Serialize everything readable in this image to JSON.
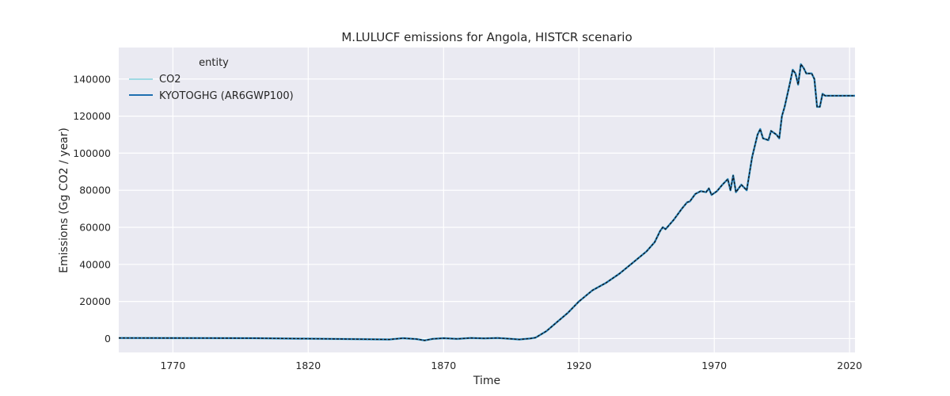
{
  "chart_data": {
    "type": "line",
    "title": "M.LULUCF emissions for Angola, HISTCR scenario",
    "xlabel": "Time",
    "ylabel": "Emissions (Gg CO2 / year)",
    "xlim": [
      1750,
      2022
    ],
    "ylim": [
      -7500,
      157000
    ],
    "xticks": [
      1770,
      1820,
      1870,
      1920,
      1970,
      2020
    ],
    "yticks": [
      0,
      20000,
      40000,
      60000,
      80000,
      100000,
      120000,
      140000
    ],
    "grid": true,
    "legend": {
      "title": "entity",
      "placement": "top-left"
    },
    "colors": {
      "background": "#eaeaf2",
      "co2": "#9fd9e3",
      "kyotoghg": "#1f6fb0",
      "overlay": "#111111"
    },
    "series": [
      {
        "name": "CO2",
        "points": [
          [
            1750,
            300
          ],
          [
            1800,
            200
          ],
          [
            1850,
            -500
          ],
          [
            1855,
            200
          ],
          [
            1860,
            -300
          ],
          [
            1863,
            -1000
          ],
          [
            1866,
            -200
          ],
          [
            1870,
            200
          ],
          [
            1875,
            -200
          ],
          [
            1880,
            300
          ],
          [
            1885,
            100
          ],
          [
            1890,
            300
          ],
          [
            1895,
            -200
          ],
          [
            1898,
            -500
          ],
          [
            1902,
            0
          ],
          [
            1904,
            500
          ],
          [
            1908,
            4000
          ],
          [
            1912,
            9000
          ],
          [
            1916,
            14000
          ],
          [
            1920,
            20000
          ],
          [
            1925,
            26000
          ],
          [
            1930,
            30000
          ],
          [
            1935,
            35000
          ],
          [
            1940,
            41000
          ],
          [
            1945,
            47000
          ],
          [
            1948,
            52000
          ],
          [
            1950,
            58000
          ],
          [
            1951,
            60000
          ],
          [
            1952,
            59000
          ],
          [
            1955,
            64000
          ],
          [
            1958,
            70000
          ],
          [
            1960,
            73500
          ],
          [
            1961,
            74000
          ],
          [
            1963,
            78000
          ],
          [
            1965,
            79500
          ],
          [
            1967,
            79000
          ],
          [
            1968,
            81000
          ],
          [
            1969,
            77500
          ],
          [
            1971,
            79500
          ],
          [
            1973,
            83000
          ],
          [
            1975,
            86000
          ],
          [
            1976,
            80000
          ],
          [
            1977,
            88000
          ],
          [
            1978,
            79000
          ],
          [
            1980,
            83000
          ],
          [
            1982,
            80000
          ],
          [
            1984,
            98000
          ],
          [
            1986,
            110000
          ],
          [
            1987,
            113000
          ],
          [
            1988,
            108000
          ],
          [
            1990,
            107000
          ],
          [
            1991,
            112000
          ],
          [
            1993,
            110000
          ],
          [
            1994,
            108000
          ],
          [
            1995,
            120000
          ],
          [
            1996,
            125000
          ],
          [
            1998,
            138000
          ],
          [
            1999,
            145000
          ],
          [
            2000,
            143000
          ],
          [
            2001,
            137000
          ],
          [
            2002,
            148000
          ],
          [
            2003,
            146000
          ],
          [
            2004,
            143000
          ],
          [
            2006,
            143000
          ],
          [
            2007,
            140000
          ],
          [
            2008,
            125000
          ],
          [
            2009,
            125000
          ],
          [
            2010,
            132000
          ],
          [
            2011,
            131000
          ],
          [
            2022,
            131000
          ]
        ]
      },
      {
        "name": "KYOTOGHG (AR6GWP100)",
        "points": [
          [
            1750,
            300
          ],
          [
            1800,
            200
          ],
          [
            1850,
            -500
          ],
          [
            1855,
            200
          ],
          [
            1860,
            -300
          ],
          [
            1863,
            -1000
          ],
          [
            1866,
            -200
          ],
          [
            1870,
            200
          ],
          [
            1875,
            -200
          ],
          [
            1880,
            300
          ],
          [
            1885,
            100
          ],
          [
            1890,
            300
          ],
          [
            1895,
            -200
          ],
          [
            1898,
            -500
          ],
          [
            1902,
            0
          ],
          [
            1904,
            500
          ],
          [
            1908,
            4000
          ],
          [
            1912,
            9000
          ],
          [
            1916,
            14000
          ],
          [
            1920,
            20000
          ],
          [
            1925,
            26000
          ],
          [
            1930,
            30000
          ],
          [
            1935,
            35000
          ],
          [
            1940,
            41000
          ],
          [
            1945,
            47000
          ],
          [
            1948,
            52000
          ],
          [
            1950,
            58000
          ],
          [
            1951,
            60000
          ],
          [
            1952,
            59000
          ],
          [
            1955,
            64000
          ],
          [
            1958,
            70000
          ],
          [
            1960,
            73500
          ],
          [
            1961,
            74000
          ],
          [
            1963,
            78000
          ],
          [
            1965,
            79500
          ],
          [
            1967,
            79000
          ],
          [
            1968,
            81000
          ],
          [
            1969,
            77500
          ],
          [
            1971,
            79500
          ],
          [
            1973,
            83000
          ],
          [
            1975,
            86000
          ],
          [
            1976,
            80000
          ],
          [
            1977,
            88000
          ],
          [
            1978,
            79000
          ],
          [
            1980,
            83000
          ],
          [
            1982,
            80000
          ],
          [
            1984,
            98000
          ],
          [
            1986,
            110000
          ],
          [
            1987,
            113000
          ],
          [
            1988,
            108000
          ],
          [
            1990,
            107000
          ],
          [
            1991,
            112000
          ],
          [
            1993,
            110000
          ],
          [
            1994,
            108000
          ],
          [
            1995,
            120000
          ],
          [
            1996,
            125000
          ],
          [
            1998,
            138000
          ],
          [
            1999,
            145000
          ],
          [
            2000,
            143000
          ],
          [
            2001,
            137000
          ],
          [
            2002,
            148000
          ],
          [
            2003,
            146000
          ],
          [
            2004,
            143000
          ],
          [
            2006,
            143000
          ],
          [
            2007,
            140000
          ],
          [
            2008,
            125000
          ],
          [
            2009,
            125000
          ],
          [
            2010,
            132000
          ],
          [
            2011,
            131000
          ],
          [
            2022,
            131000
          ]
        ]
      }
    ]
  }
}
